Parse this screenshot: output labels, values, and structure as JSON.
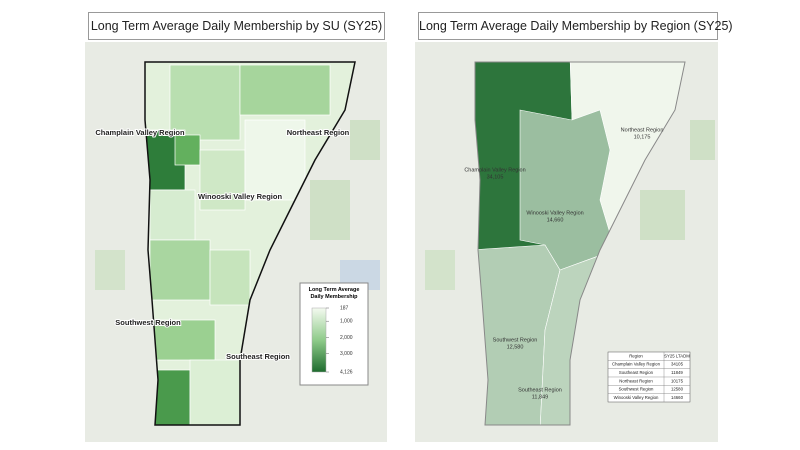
{
  "left_map": {
    "title": "Long Term Average Daily Membership by SU (SY25)",
    "region_labels": [
      "Champlain Valley Region",
      "Northeast Region",
      "Winooski Valley Region",
      "Southwest Region",
      "Southeast Region"
    ],
    "legend": {
      "title": "Long Term Average Daily Membership",
      "ticks": [
        187,
        {
          "value": 1000,
          "label": "1,000"
        },
        {
          "value": 2000,
          "label": "2,000"
        },
        {
          "value": 3000,
          "label": "3,000"
        },
        {
          "value": 4126,
          "label": "4,126"
        }
      ]
    }
  },
  "right_map": {
    "title": "Long Term Average Daily Membership by Region (SY25)",
    "regions": [
      {
        "name": "Champlain Valley Region",
        "value": 34105,
        "label": "34,105"
      },
      {
        "name": "Northeast Region",
        "value": 10175,
        "label": "10,175"
      },
      {
        "name": "Winooski Valley Region",
        "value": 14660,
        "label": "14,660"
      },
      {
        "name": "Southwest Region",
        "value": 12580,
        "label": "12,580"
      },
      {
        "name": "Southeast Region",
        "value": 11849,
        "label": "11,849"
      }
    ],
    "table": {
      "header": [
        "Region",
        "SY25 LTADM"
      ],
      "rows": [
        [
          "Champlain Valley Region",
          34105
        ],
        [
          "Southeast Region",
          11849
        ],
        [
          "Northeast Region",
          10175
        ],
        [
          "Southwest Region",
          12580
        ],
        [
          "Winooski Valley Region",
          14660
        ]
      ]
    }
  }
}
